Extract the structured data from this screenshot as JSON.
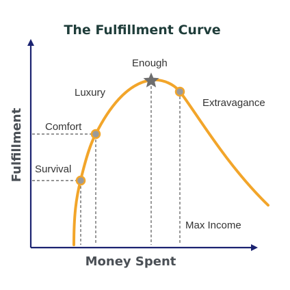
{
  "title": "The Fulfillment Curve",
  "axes": {
    "x_label": "Money Spent",
    "y_label": "Fulfillment"
  },
  "points": {
    "survival": "Survival",
    "comfort": "Comfort",
    "luxury": "Luxury",
    "enough": "Enough",
    "extravagance": "Extravagance",
    "max_income": "Max Income"
  },
  "colors": {
    "curve": "#f2a52a",
    "axis": "#1a2270",
    "marker_fill": "#9a9a9a",
    "marker_stroke": "#f2a52a",
    "star": "#6e6e6e",
    "dashed": "#555555"
  }
}
